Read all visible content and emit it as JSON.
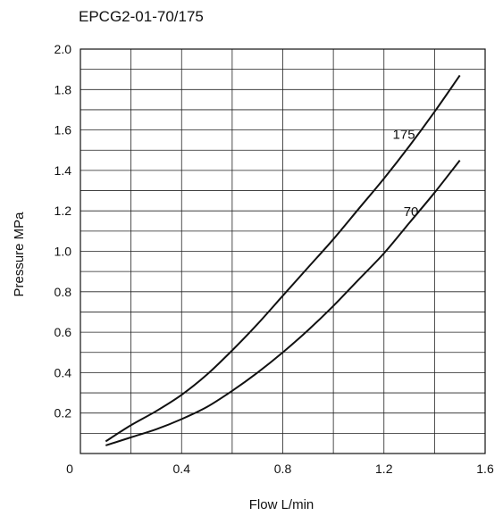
{
  "chart_data": {
    "type": "line",
    "title": "EPCG2-01-70/175",
    "xlabel": "Flow L/min",
    "ylabel": "Pressure MPa",
    "xlim": [
      0,
      1.6
    ],
    "ylim": [
      0,
      2.0
    ],
    "x_ticks": [
      "0",
      "0.4",
      "0.8",
      "1.2",
      "1.6"
    ],
    "y_ticks": [
      "0.2",
      "0.4",
      "0.6",
      "0.8",
      "1.0",
      "1.2",
      "1.4",
      "1.6",
      "1.8",
      "2.0"
    ],
    "grid": true,
    "series": [
      {
        "name": "175",
        "x": [
          0.1,
          0.2,
          0.3,
          0.4,
          0.5,
          0.6,
          0.7,
          0.8,
          0.9,
          1.0,
          1.1,
          1.2,
          1.3,
          1.4,
          1.5
        ],
        "y": [
          0.06,
          0.14,
          0.21,
          0.29,
          0.39,
          0.51,
          0.64,
          0.78,
          0.92,
          1.06,
          1.21,
          1.36,
          1.52,
          1.69,
          1.87
        ]
      },
      {
        "name": "70",
        "x": [
          0.1,
          0.2,
          0.3,
          0.4,
          0.5,
          0.6,
          0.7,
          0.8,
          0.9,
          1.0,
          1.1,
          1.2,
          1.3,
          1.4,
          1.5
        ],
        "y": [
          0.04,
          0.08,
          0.12,
          0.17,
          0.23,
          0.31,
          0.4,
          0.5,
          0.61,
          0.73,
          0.86,
          0.99,
          1.14,
          1.29,
          1.45
        ]
      }
    ]
  }
}
